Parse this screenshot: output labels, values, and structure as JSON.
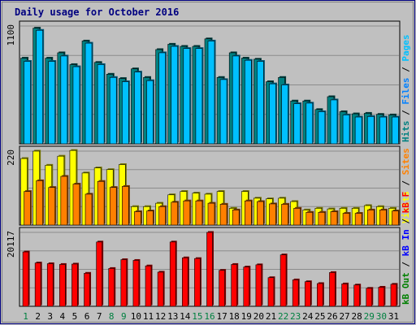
{
  "chart_data": {
    "type": "bar",
    "title": "Daily usage for October 2016",
    "x": [
      "1",
      "2",
      "3",
      "4",
      "5",
      "6",
      "7",
      "8",
      "9",
      "10",
      "11",
      "12",
      "13",
      "14",
      "15",
      "16",
      "17",
      "18",
      "19",
      "20",
      "21",
      "22",
      "23",
      "24",
      "25",
      "26",
      "27",
      "28",
      "29",
      "30",
      "31"
    ],
    "weekend_days": [
      "1",
      "8",
      "9",
      "15",
      "16",
      "22",
      "23",
      "29",
      "30"
    ],
    "colors": {
      "background": "#c0c0c0",
      "border": "#000080",
      "hits": "#008080",
      "files": "#0080ff",
      "pages": "#00c0ff",
      "visits": "#ffff00",
      "sites": "#ff8000",
      "kb_in": "#ff0000",
      "kb_out": "#008000",
      "weekday_label": "#000000",
      "weekend_label": "#008040"
    },
    "panels": [
      {
        "id": "hits-files-pages",
        "max_label": "1100",
        "max": 1100,
        "legend": [
          {
            "text": "Hits",
            "color": "#008080"
          },
          {
            "text": "Files",
            "color": "#0080ff"
          },
          {
            "text": "Pages",
            "color": "#00c0ff"
          }
        ],
        "series": [
          {
            "name": "Hits",
            "color": "#008080",
            "values": [
              800,
              1080,
              800,
              850,
              740,
              960,
              760,
              650,
              610,
              700,
              620,
              880,
              930,
              910,
              910,
              980,
              620,
              850,
              800,
              790,
              580,
              620,
              400,
              400,
              320,
              440,
              300,
              280,
              285,
              275,
              270
            ]
          },
          {
            "name": "Files",
            "color": "#00c0ff",
            "values": [
              770,
              1060,
              770,
              820,
              720,
              940,
              740,
              620,
              580,
              670,
              590,
              850,
              910,
              890,
              890,
              960,
              600,
              820,
              780,
              770,
              560,
              550,
              375,
              380,
              300,
              410,
              270,
              250,
              255,
              250,
              250
            ]
          }
        ]
      },
      {
        "id": "visits-sites",
        "max_label": "220",
        "max": 220,
        "legend": [
          {
            "text": "Visits",
            "color": "#ffff00"
          },
          {
            "text": "Sites",
            "color": "#ff8000"
          }
        ],
        "series": [
          {
            "name": "Visits",
            "color": "#ffff00",
            "values": [
              198,
              220,
              178,
              205,
              222,
              155,
              170,
              165,
              180,
              55,
              55,
              65,
              90,
              100,
              95,
              92,
              100,
              50,
              100,
              80,
              78,
              80,
              70,
              45,
              50,
              48,
              50,
              50,
              58,
              55,
              50
            ]
          },
          {
            "name": "Sites",
            "color": "#ff8000",
            "values": [
              100,
              132,
              112,
              145,
              122,
              92,
              130,
              112,
              115,
              40,
              42,
              55,
              68,
              72,
              72,
              65,
              62,
              45,
              72,
              70,
              63,
              62,
              50,
              38,
              38,
              40,
              35,
              35,
              45,
              45,
              42
            ]
          }
        ]
      },
      {
        "id": "kbf-kbin-kbout",
        "max_label": "20117",
        "max": 20117,
        "legend": [
          {
            "text": "kB Out",
            "color": "#008000"
          },
          {
            "text": "kB In",
            "color": "#0000ff"
          },
          {
            "text": "kB F",
            "color": "#ff0000"
          }
        ],
        "series": [
          {
            "name": "kB F",
            "color": "#ff0000",
            "values": [
              14800,
              11800,
              11600,
              11400,
              11500,
              9000,
              17500,
              10300,
              12700,
              12500,
              11000,
              9300,
              17500,
              13200,
              13000,
              20117,
              9800,
              11400,
              10700,
              11300,
              7800,
              14000,
              7200,
              6700,
              6200,
              9200,
              6100,
              5800,
              4900,
              5200,
              6000
            ]
          }
        ]
      }
    ]
  }
}
